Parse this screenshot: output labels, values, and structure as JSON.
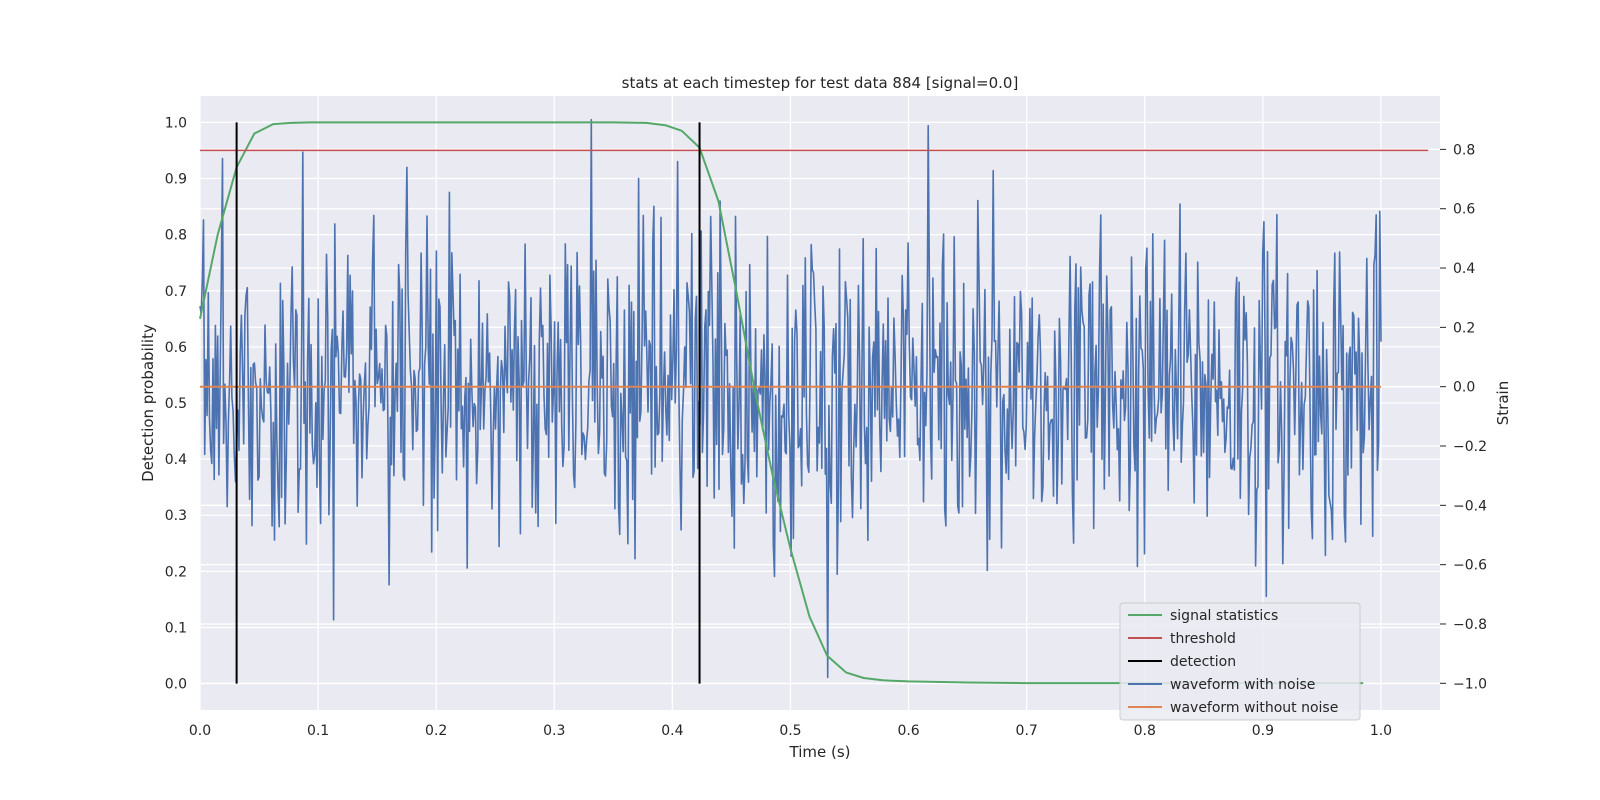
{
  "chart_data": {
    "type": "line",
    "title": "stats at each timestep for test data 884 [signal=0.0]",
    "xlabel": "Time (s)",
    "ylabel": "Detection probability",
    "y2label": "Strain",
    "xlim": [
      0.0,
      1.05
    ],
    "ylim": [
      -0.047,
      1.047
    ],
    "y2lim": [
      -1.09,
      0.98
    ],
    "xticks": [
      "0.0",
      "0.1",
      "0.2",
      "0.3",
      "0.4",
      "0.5",
      "0.6",
      "0.7",
      "0.8",
      "0.9",
      "1.0"
    ],
    "yticks": [
      "0.0",
      "0.1",
      "0.2",
      "0.3",
      "0.4",
      "0.5",
      "0.6",
      "0.7",
      "0.8",
      "0.9",
      "1.0"
    ],
    "y2ticks": [
      "−1.0",
      "−0.8",
      "−0.6",
      "−0.4",
      "−0.2",
      "0.0",
      "0.2",
      "0.4",
      "0.6",
      "0.8"
    ],
    "grid": true,
    "background": "#eaeaf2",
    "legend_position": "lower-right",
    "series": [
      {
        "name": "signal statistics",
        "axis": "left",
        "color": "#55a868",
        "x": [
          0.0,
          0.015,
          0.031,
          0.046,
          0.062,
          0.077,
          0.093,
          0.15,
          0.25,
          0.35,
          0.378,
          0.394,
          0.408,
          0.423,
          0.439,
          0.454,
          0.47,
          0.485,
          0.5,
          0.516,
          0.531,
          0.547,
          0.562,
          0.578,
          0.6,
          0.65,
          0.7,
          0.8,
          0.9,
          0.985
        ],
        "y": [
          0.65,
          0.8,
          0.92,
          0.98,
          0.997,
          0.999,
          1.0,
          1.0,
          1.0,
          1.0,
          0.999,
          0.995,
          0.985,
          0.955,
          0.86,
          0.7,
          0.52,
          0.37,
          0.24,
          0.12,
          0.05,
          0.02,
          0.01,
          0.006,
          0.004,
          0.002,
          0.001,
          0.001,
          0.001,
          0.001
        ]
      },
      {
        "name": "threshold",
        "axis": "left",
        "color": "#c44e52",
        "x": [
          0.0,
          1.04
        ],
        "y": [
          0.95,
          0.95
        ]
      },
      {
        "name": "detection",
        "axis": "left",
        "color": "#000000",
        "type": "vlines",
        "x": [
          0.031,
          0.423
        ],
        "y": [
          0.0,
          1.0
        ]
      },
      {
        "name": "waveform with noise",
        "axis": "right",
        "color": "#4c72b0",
        "type": "noise",
        "x_start": 0.0,
        "x_end": 1.0,
        "n_points": 1000,
        "std": 0.27,
        "y_range": [
          -1.0,
          0.92
        ],
        "notable_x": [
          0.331,
          0.532,
          0.617
        ],
        "notable_y": [
          0.9,
          -0.98,
          0.88
        ]
      },
      {
        "name": "waveform without noise",
        "axis": "right",
        "color": "#dd8452",
        "x": [
          0.0,
          1.0
        ],
        "y": [
          0.0,
          0.0
        ]
      }
    ]
  }
}
